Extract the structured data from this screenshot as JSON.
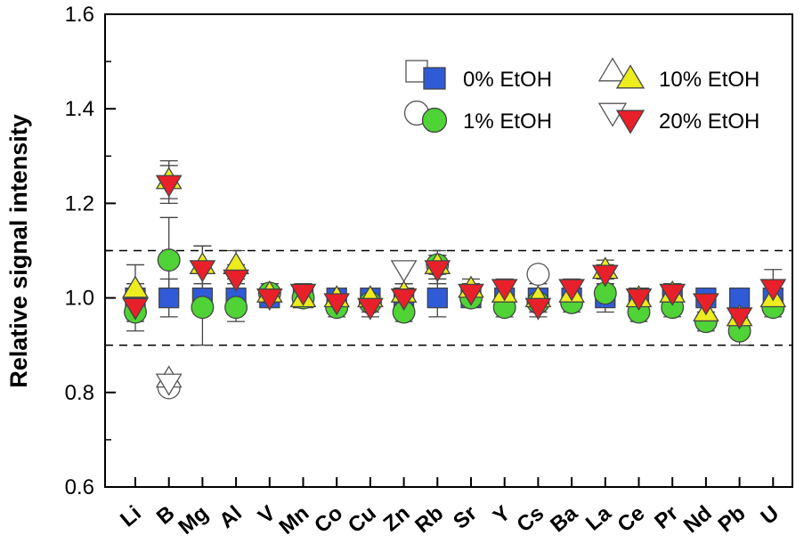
{
  "chart_data": {
    "type": "scatter",
    "ylabel": "Relative signal intensity",
    "xlabel": "",
    "ylim": [
      0.6,
      1.6
    ],
    "yticks": [
      "0.6",
      "0.8",
      "1.0",
      "1.2",
      "1.4",
      "1.6"
    ],
    "categories": [
      "Li",
      "B",
      "Mg",
      "Al",
      "V",
      "Mn",
      "Co",
      "Cu",
      "Zn",
      "Rb",
      "Sr",
      "Y",
      "Cs",
      "Ba",
      "La",
      "Ce",
      "Pr",
      "Nd",
      "Pb",
      "U"
    ],
    "reference_lines": [
      0.9,
      1.1
    ],
    "series": [
      {
        "name": "0% EtOH",
        "marker": "square",
        "color": "#2f5bd8",
        "values": [
          1.0,
          1.0,
          1.0,
          1.0,
          1.0,
          1.0,
          1.0,
          1.0,
          1.0,
          1.0,
          1.0,
          1.0,
          1.0,
          1.0,
          1.0,
          1.0,
          1.0,
          1.0,
          1.0,
          1.0
        ],
        "errors": [
          0.03,
          0.04,
          0.02,
          0.03,
          0.01,
          0.02,
          0.02,
          0.02,
          0.03,
          0.04,
          0.02,
          0.02,
          0.03,
          0.02,
          0.03,
          0.02,
          0.02,
          0.02,
          0.02,
          0.02
        ]
      },
      {
        "name": "1% EtOH",
        "marker": "circle",
        "color": "#4fd336",
        "values": [
          0.97,
          1.08,
          0.98,
          0.98,
          1.01,
          1.0,
          0.98,
          0.99,
          0.97,
          1.07,
          1.0,
          0.98,
          0.99,
          0.99,
          1.01,
          0.97,
          0.98,
          0.95,
          0.93,
          0.98
        ],
        "errors": [
          0.04,
          0.09,
          0.08,
          0.03,
          0.02,
          0.02,
          0.02,
          0.02,
          0.02,
          0.02,
          0.02,
          0.02,
          0.02,
          0.02,
          0.02,
          0.02,
          0.02,
          0.02,
          0.03,
          0.02
        ]
      },
      {
        "name": "10% EtOH",
        "marker": "triangle-up",
        "color": "#ecec1e",
        "values": [
          1.02,
          1.25,
          1.07,
          1.07,
          1.01,
          1.0,
          1.0,
          1.0,
          1.01,
          1.07,
          1.02,
          1.01,
          1.0,
          1.01,
          1.06,
          1.0,
          1.01,
          0.97,
          0.96,
          1.0
        ],
        "errors": [
          0.05,
          0.04,
          0.04,
          0.03,
          0.02,
          0.02,
          0.02,
          0.02,
          0.02,
          0.03,
          0.02,
          0.02,
          0.02,
          0.02,
          0.02,
          0.02,
          0.02,
          0.02,
          0.02,
          0.02
        ]
      },
      {
        "name": "20% EtOH",
        "marker": "triangle-down",
        "color": "#e8202a",
        "values": [
          0.98,
          1.24,
          1.06,
          1.04,
          1.0,
          1.01,
          0.99,
          0.98,
          1.0,
          1.06,
          1.01,
          1.02,
          0.98,
          1.02,
          1.05,
          1.0,
          1.01,
          0.99,
          0.96,
          1.02
        ],
        "errors": [
          0.03,
          0.04,
          0.05,
          0.03,
          0.02,
          0.02,
          0.02,
          0.02,
          0.03,
          0.03,
          0.02,
          0.02,
          0.02,
          0.02,
          0.02,
          0.02,
          0.02,
          0.02,
          0.03,
          0.04
        ]
      }
    ],
    "outliers": [
      {
        "category": "B",
        "marker": "circle",
        "value": 0.81
      },
      {
        "category": "B",
        "marker": "triangle-up",
        "value": 0.83
      },
      {
        "category": "B",
        "marker": "triangle-down",
        "value": 0.82
      },
      {
        "category": "Zn",
        "marker": "triangle-down",
        "value": 1.06
      },
      {
        "category": "Cs",
        "marker": "circle",
        "value": 1.05
      }
    ],
    "legend": {
      "placement": "top-right",
      "layout": "2 columns",
      "items": [
        "0% EtOH",
        "1% EtOH",
        "10% EtOH",
        "20% EtOH"
      ]
    }
  }
}
